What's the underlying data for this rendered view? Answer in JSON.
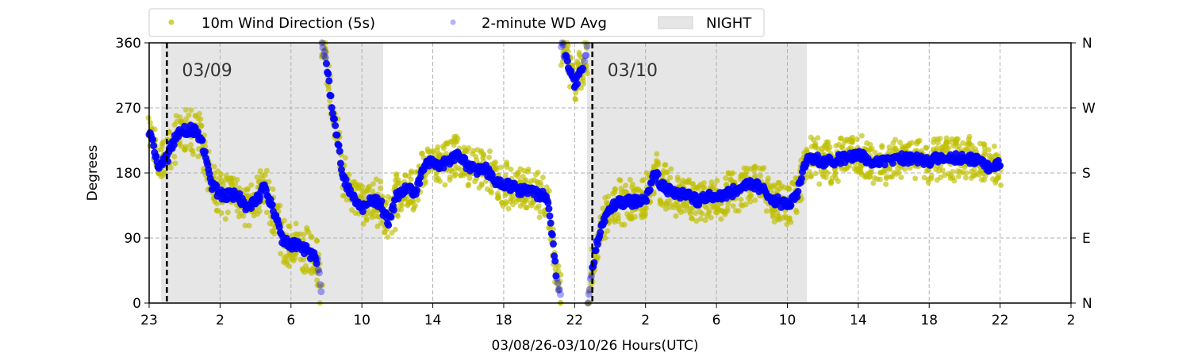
{
  "chart_data": {
    "type": "scatter",
    "title": "",
    "xlabel": "03/08/26-03/10/26  Hours(UTC)",
    "ylabel": "Degrees",
    "xlim": [
      0,
      52
    ],
    "ylim": [
      0,
      360
    ],
    "x_ticks": [
      0,
      4,
      8,
      12,
      16,
      20,
      24,
      28,
      32,
      36,
      40,
      44,
      48,
      52
    ],
    "x_tick_labels": [
      "23",
      "2",
      "6",
      "10",
      "14",
      "18",
      "22",
      "2",
      "6",
      "10",
      "14",
      "18",
      "22",
      "2"
    ],
    "y_ticks": [
      0,
      90,
      180,
      270,
      360
    ],
    "y_tick_labels": [
      "0",
      "90",
      "180",
      "270",
      "360"
    ],
    "y2_tick_labels": [
      "N",
      "E",
      "S",
      "W",
      "N"
    ],
    "grid": true,
    "legend": {
      "placement": "top-center-outside",
      "entries": [
        "10m Wind Direction (5s)",
        "2-minute WD Avg",
        "NIGHT"
      ]
    },
    "night_periods": [
      [
        0.67,
        13.2
      ],
      [
        24.7,
        37.1
      ]
    ],
    "day_markers": [
      {
        "x": 1.0,
        "label": "03/09"
      },
      {
        "x": 25.0,
        "label": "03/10"
      }
    ],
    "colors": {
      "wd_5s": "#bfbf00",
      "wd_avg": "#0000ff",
      "night": "#e6e6e6"
    },
    "series": [
      {
        "name": "2-minute WD Avg",
        "x": [
          0,
          0.5,
          1,
          1.5,
          2,
          2.5,
          3,
          3.5,
          4,
          4.5,
          5,
          5.5,
          6,
          6.5,
          7,
          7.5,
          8,
          8.5,
          9,
          9.5,
          10,
          10.5,
          11,
          11.5,
          12,
          12.5,
          13,
          13.5,
          14,
          14.5,
          15,
          15.5,
          16,
          16.5,
          17,
          17.5,
          18,
          18.5,
          19,
          19.5,
          20,
          20.5,
          21,
          21.5,
          22,
          22.5,
          23,
          23.5,
          24,
          24.5,
          25,
          25.5,
          26,
          26.5,
          27,
          27.5,
          28,
          28.5,
          29,
          29.5,
          30,
          30.5,
          31,
          31.5,
          32,
          32.5,
          33,
          33.5,
          34,
          34.5,
          35,
          35.5,
          36,
          36.5,
          37,
          37.5,
          38,
          38.5,
          39,
          39.5,
          40,
          40.5,
          41,
          41.5,
          42,
          42.5,
          43,
          43.5,
          44,
          44.5,
          45,
          45.5,
          46,
          46.5,
          47,
          47.5,
          48
        ],
        "y": [
          240,
          190,
          200,
          230,
          240,
          240,
          220,
          165,
          150,
          150,
          150,
          130,
          140,
          160,
          130,
          90,
          80,
          80,
          70,
          60,
          330,
          240,
          170,
          150,
          130,
          140,
          140,
          110,
          150,
          160,
          150,
          190,
          195,
          190,
          200,
          205,
          190,
          185,
          185,
          170,
          165,
          160,
          155,
          155,
          150,
          145,
          30,
          340,
          300,
          330,
          50,
          110,
          130,
          140,
          140,
          140,
          140,
          180,
          160,
          155,
          150,
          150,
          140,
          150,
          145,
          150,
          155,
          160,
          165,
          160,
          145,
          140,
          135,
          145,
          195,
          200,
          195,
          195,
          200,
          200,
          205,
          200,
          195,
          195,
          200,
          200,
          200,
          200,
          195,
          200,
          205,
          200,
          200,
          200,
          195,
          185,
          195
        ]
      }
    ]
  }
}
